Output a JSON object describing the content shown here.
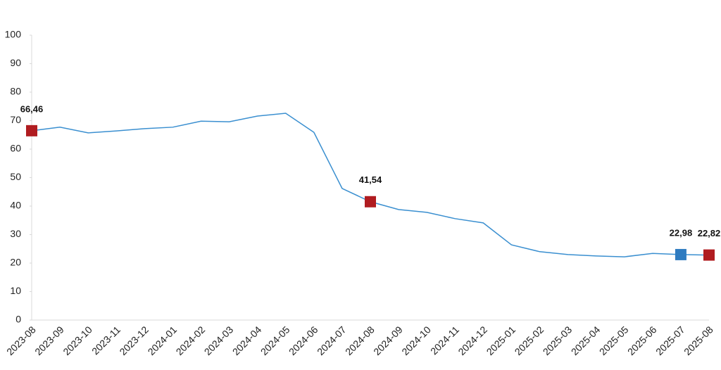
{
  "chart_data": {
    "type": "line",
    "categories": [
      "2023-08",
      "2023-09",
      "2023-10",
      "2023-11",
      "2023-12",
      "2024-01",
      "2024-02",
      "2024-03",
      "2024-04",
      "2024-05",
      "2024-06",
      "2024-07",
      "2024-08",
      "2024-09",
      "2024-10",
      "2024-11",
      "2024-12",
      "2025-01",
      "2025-02",
      "2025-03",
      "2025-04",
      "2025-05",
      "2025-06",
      "2025-07",
      "2025-08"
    ],
    "values": [
      66.46,
      67.7,
      65.7,
      66.4,
      67.2,
      67.7,
      69.8,
      69.6,
      71.6,
      72.6,
      65.9,
      46.2,
      41.54,
      38.8,
      37.8,
      35.6,
      34.1,
      26.4,
      24.0,
      23.0,
      22.5,
      22.2,
      23.4,
      22.98,
      22.82
    ],
    "value_labels": [
      "66,46",
      null,
      null,
      null,
      null,
      null,
      null,
      null,
      null,
      null,
      null,
      null,
      "41,54",
      null,
      null,
      null,
      null,
      null,
      null,
      null,
      null,
      null,
      null,
      "22,98",
      "22,82"
    ],
    "marker_colors": [
      "#b01c20",
      null,
      null,
      null,
      null,
      null,
      null,
      null,
      null,
      null,
      null,
      null,
      "#b01c20",
      null,
      null,
      null,
      null,
      null,
      null,
      null,
      null,
      null,
      null,
      "#2e7bc0",
      "#b01c20"
    ],
    "color": "#3a8fd0",
    "ylim": [
      0,
      100
    ],
    "yticks": [
      0,
      10,
      20,
      30,
      40,
      50,
      60,
      70,
      80,
      90,
      100
    ],
    "grid": false
  }
}
